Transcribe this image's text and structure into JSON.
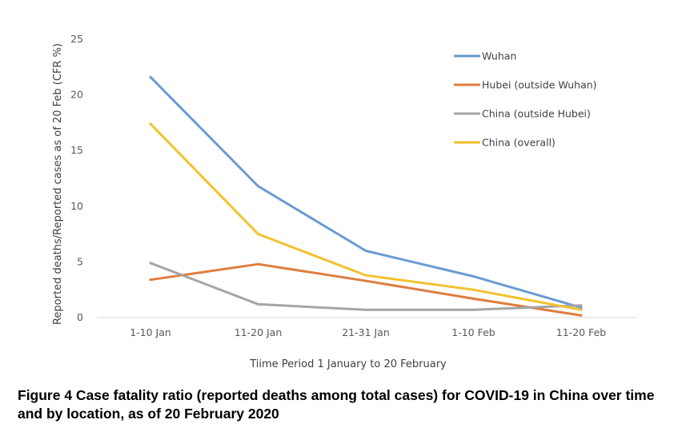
{
  "chart_data": {
    "type": "line",
    "categories": [
      "1-10 Jan",
      "11-20 Jan",
      "21-31 Jan",
      "1-10 Feb",
      "11-20 Feb"
    ],
    "series": [
      {
        "name": "Wuhan",
        "color": "#6a9bd2",
        "values": [
          21.6,
          11.8,
          6.0,
          3.7,
          0.9
        ]
      },
      {
        "name": "Hubei (outside Wuhan)",
        "color": "#e07c3e",
        "values": [
          3.4,
          4.8,
          3.3,
          1.7,
          0.2
        ]
      },
      {
        "name": "China (outside Hubei)",
        "color": "#a5a5a5",
        "values": [
          4.9,
          1.2,
          0.7,
          0.7,
          1.1
        ]
      },
      {
        "name": "China (overall)",
        "color": "#f2c22e",
        "values": [
          17.4,
          7.5,
          3.8,
          2.5,
          0.7
        ]
      }
    ],
    "ylim": [
      0,
      25
    ],
    "yticks": [
      0,
      5,
      10,
      15,
      20,
      25
    ],
    "xlabel": "Tiime Period 1 January to 20 February",
    "ylabel": "Reported deaths/Reported  cases as of 20 Feb (CFR %)",
    "legend_position": "top-right",
    "grid": false
  },
  "caption": "Figure 4 Case fatality ratio (reported deaths among total cases) for COVID-19 in China over time and by location, as of 20 February 2020"
}
